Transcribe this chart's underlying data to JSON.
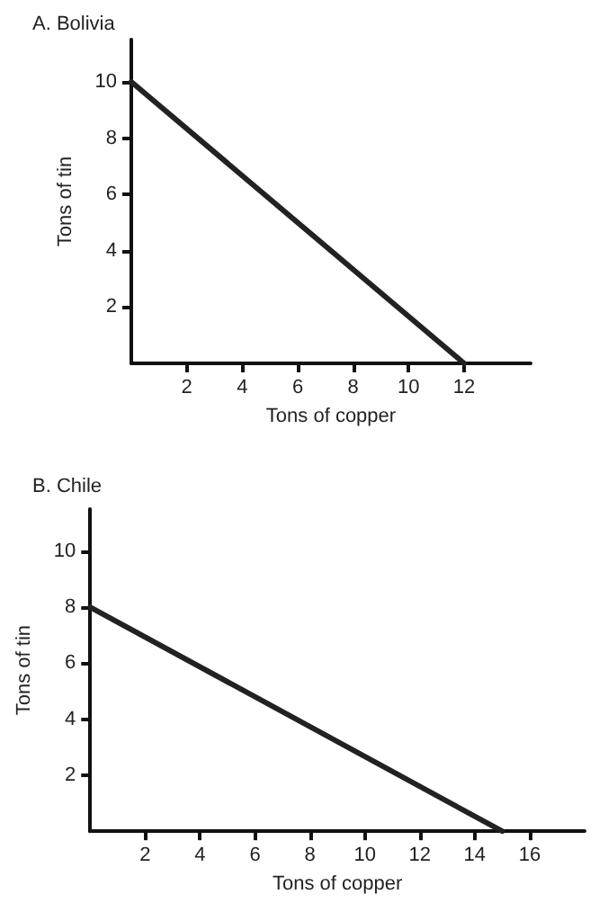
{
  "chart_data": [
    {
      "type": "line",
      "title": "A. Bolivia",
      "xlabel": "Tons of copper",
      "ylabel": "Tons of tin",
      "x": [
        0,
        12
      ],
      "series": [
        {
          "color": "#222222",
          "values": [
            10,
            0
          ]
        }
      ],
      "xlim": [
        0,
        14.4
      ],
      "xticks": [
        2,
        4,
        6,
        8,
        10,
        12
      ],
      "ylim": [
        0,
        11.5
      ],
      "yticks": [
        2,
        4,
        6,
        8,
        10
      ],
      "grid": false,
      "marker": "none",
      "line_style": "solid"
    },
    {
      "type": "line",
      "title": "B. Chile",
      "xlabel": "Tons of copper",
      "ylabel": "Tons of tin",
      "x": [
        0,
        15
      ],
      "series": [
        {
          "color": "#222222",
          "values": [
            8,
            0
          ]
        }
      ],
      "xlim": [
        0,
        18
      ],
      "xticks": [
        2,
        4,
        6,
        8,
        10,
        12,
        14,
        16
      ],
      "ylim": [
        0,
        11.5
      ],
      "yticks": [
        2,
        4,
        6,
        8,
        10
      ],
      "grid": false,
      "marker": "none",
      "line_style": "solid"
    }
  ]
}
